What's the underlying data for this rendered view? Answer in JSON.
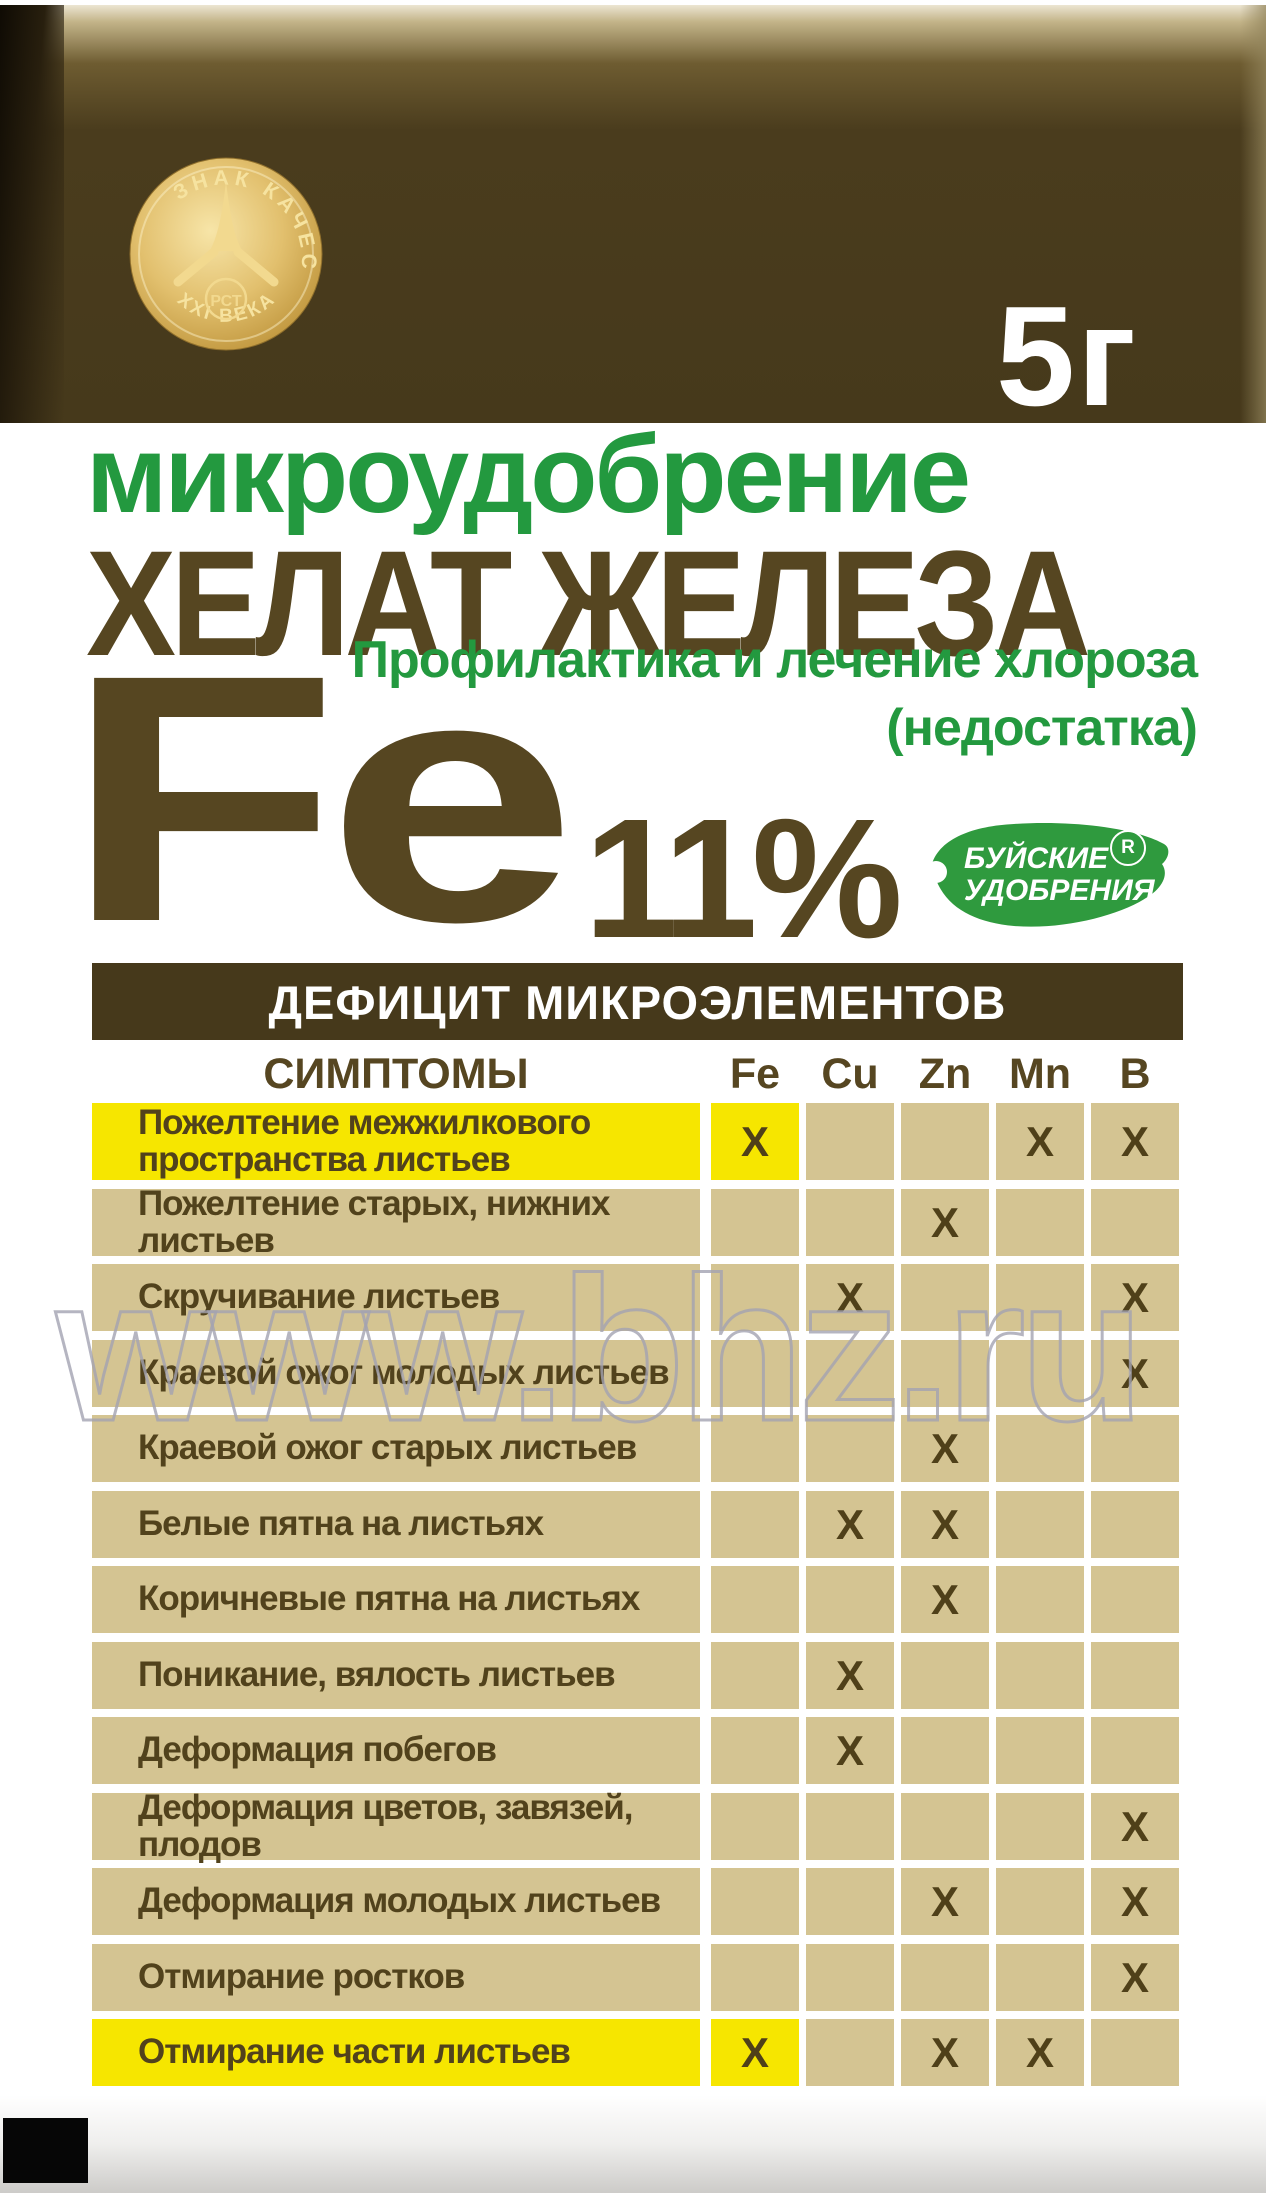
{
  "package": {
    "weight_label": "5г",
    "medal": {
      "top_text": "ЗНАК КАЧЕСТВА",
      "bottom_text": "XXI ВЕКА",
      "center_text": "РСТ"
    },
    "product_type": "микроудобрение",
    "product_name": "ХЕЛАТ ЖЕЛЕЗА",
    "tagline_line1": "Профилактика и лечение хлороза",
    "tagline_line2": "(недостатка)",
    "element_symbol": "Fe",
    "element_percent": "11%",
    "brand": {
      "line1": "БУЙСКИЕ",
      "line2": "УДОБРЕНИЯ",
      "registered_mark": "R"
    }
  },
  "table": {
    "banner": "ДЕФИЦИТ МИКРОЭЛЕМЕНТОВ",
    "symptoms_header": "СИМПТОМЫ",
    "columns": [
      "Fe",
      "Cu",
      "Zn",
      "Mn",
      "B"
    ],
    "rows": [
      {
        "symptom": "Пожелтение межжилкового пространства листьев",
        "highlight": true,
        "marks": [
          "X",
          "",
          "",
          "X",
          "X"
        ]
      },
      {
        "symptom": "Пожелтение старых, нижних листьев",
        "highlight": false,
        "marks": [
          "",
          "",
          "X",
          "",
          ""
        ]
      },
      {
        "symptom": "Скручивание листьев",
        "highlight": false,
        "marks": [
          "",
          "X",
          "",
          "",
          "X"
        ]
      },
      {
        "symptom": "Краевой ожог молодых листьев",
        "highlight": false,
        "marks": [
          "",
          "",
          "",
          "",
          "X"
        ]
      },
      {
        "symptom": "Краевой ожог старых листьев",
        "highlight": false,
        "marks": [
          "",
          "",
          "X",
          "",
          ""
        ]
      },
      {
        "symptom": "Белые пятна на листьях",
        "highlight": false,
        "marks": [
          "",
          "X",
          "X",
          "",
          ""
        ]
      },
      {
        "symptom": "Коричневые пятна на листьях",
        "highlight": false,
        "marks": [
          "",
          "",
          "X",
          "",
          ""
        ]
      },
      {
        "symptom": "Поникание, вялость листьев",
        "highlight": false,
        "marks": [
          "",
          "X",
          "",
          "",
          ""
        ]
      },
      {
        "symptom": "Деформация побегов",
        "highlight": false,
        "marks": [
          "",
          "X",
          "",
          "",
          ""
        ]
      },
      {
        "symptom": "Деформация цветов, завязей, плодов",
        "highlight": false,
        "marks": [
          "",
          "",
          "",
          "",
          "X"
        ]
      },
      {
        "symptom": "Деформация молодых листьев",
        "highlight": false,
        "marks": [
          "",
          "",
          "X",
          "",
          "X"
        ]
      },
      {
        "symptom": "Отмирание ростков",
        "highlight": false,
        "marks": [
          "",
          "",
          "",
          "",
          "X"
        ]
      },
      {
        "symptom": "Отмирание части листьев",
        "highlight": true,
        "marks": [
          "X",
          "",
          "X",
          "X",
          ""
        ]
      }
    ]
  },
  "watermark": "www.bhz.ru",
  "colors": {
    "header_brown": "#46391b",
    "title_brown": "#564621",
    "green": "#23993f",
    "leaf_green": "#2f9a3e",
    "cell_tan": "#d4c492",
    "highlight_yellow": "#f6e600",
    "gold": "#e2c06e",
    "watermark_gray": "#a2a2b2"
  }
}
